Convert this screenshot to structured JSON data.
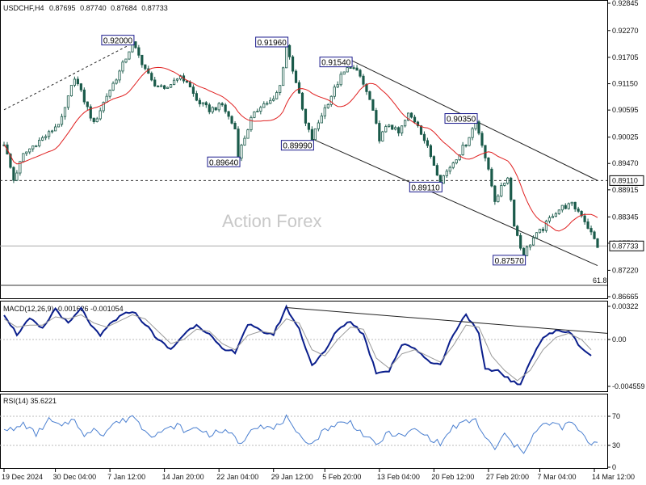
{
  "chart_data": [
    {
      "type": "candlestick",
      "panel": "price",
      "symbol": "USDCHF,H4",
      "ohlc_readout": [
        "0.87695",
        "0.87740",
        "0.87684",
        "0.87733"
      ],
      "yticks": [
        "0.92845",
        "0.92270",
        "0.91705",
        "0.91150",
        "0.90595",
        "0.90025",
        "0.89470",
        "0.88915",
        "0.88345",
        "0.87790",
        "0.87220",
        "0.86665"
      ],
      "ylim": [
        0.86665,
        0.92845
      ],
      "current_price": "0.87733",
      "horizontal_level": "0.89110",
      "fib_label": "61.8",
      "watermark": "Action Forex",
      "moving_average_color": "#e02020",
      "price_color": "#1a5a4a",
      "swing_labels": [
        "0.92000",
        "0.91960",
        "0.91540",
        "0.89640",
        "0.89990",
        "0.90350",
        "0.89110",
        "0.87570"
      ],
      "swings": [
        {
          "label": "0.92000",
          "index": 40,
          "value": 0.92
        },
        {
          "label": "0.91960",
          "index": 88,
          "value": 0.9196
        },
        {
          "label": "0.91540",
          "index": 108,
          "value": 0.9154
        },
        {
          "label": "0.89640",
          "index": 73,
          "value": 0.8964
        },
        {
          "label": "0.89990",
          "index": 96,
          "value": 0.8999
        },
        {
          "label": "0.90350",
          "index": 147,
          "value": 0.9035
        },
        {
          "label": "0.89110",
          "index": 136,
          "value": 0.8911
        },
        {
          "label": "0.87570",
          "index": 162,
          "value": 0.8757
        }
      ],
      "close_path": [
        [
          0,
          0.899
        ],
        [
          3,
          0.8912
        ],
        [
          6,
          0.8965
        ],
        [
          10,
          0.899
        ],
        [
          14,
          0.901
        ],
        [
          18,
          0.904
        ],
        [
          22,
          0.913
        ],
        [
          25,
          0.908
        ],
        [
          28,
          0.903
        ],
        [
          32,
          0.909
        ],
        [
          36,
          0.914
        ],
        [
          40,
          0.92
        ],
        [
          43,
          0.916
        ],
        [
          46,
          0.912
        ],
        [
          50,
          0.91
        ],
        [
          54,
          0.913
        ],
        [
          57,
          0.912
        ],
        [
          60,
          0.908
        ],
        [
          64,
          0.906
        ],
        [
          68,
          0.907
        ],
        [
          72,
          0.902
        ],
        [
          73,
          0.8964
        ],
        [
          77,
          0.904
        ],
        [
          80,
          0.907
        ],
        [
          84,
          0.908
        ],
        [
          86,
          0.911
        ],
        [
          88,
          0.9196
        ],
        [
          91,
          0.912
        ],
        [
          94,
          0.903
        ],
        [
          96,
          0.8999
        ],
        [
          99,
          0.905
        ],
        [
          102,
          0.909
        ],
        [
          105,
          0.913
        ],
        [
          108,
          0.9154
        ],
        [
          111,
          0.913
        ],
        [
          114,
          0.908
        ],
        [
          117,
          0.9
        ],
        [
          120,
          0.903
        ],
        [
          123,
          0.901
        ],
        [
          126,
          0.905
        ],
        [
          129,
          0.903
        ],
        [
          132,
          0.898
        ],
        [
          136,
          0.8911
        ],
        [
          140,
          0.895
        ],
        [
          144,
          0.899
        ],
        [
          147,
          0.9035
        ],
        [
          149,
          0.899
        ],
        [
          151,
          0.893
        ],
        [
          153,
          0.887
        ],
        [
          155,
          0.8895
        ],
        [
          157,
          0.892
        ],
        [
          159,
          0.882
        ],
        [
          161,
          0.877
        ],
        [
          162,
          0.8757
        ],
        [
          165,
          0.879
        ],
        [
          168,
          0.881
        ],
        [
          171,
          0.884
        ],
        [
          174,
          0.8855
        ],
        [
          177,
          0.886
        ],
        [
          180,
          0.884
        ],
        [
          183,
          0.88
        ],
        [
          185,
          0.8773
        ]
      ],
      "trend_lines": [
        {
          "style": "dashed",
          "from": [
            0,
            0.906
          ],
          "to": [
            40,
            0.92
          ]
        },
        {
          "style": "solid",
          "from": [
            96,
            0.8999
          ],
          "to": [
            185,
            0.8732
          ]
        },
        {
          "style": "solid",
          "from": [
            108,
            0.9165
          ],
          "to": [
            185,
            0.8911
          ]
        }
      ],
      "x_tick_labels": [
        "19 Dec 2024",
        "30 Dec 04:00",
        "7 Jan 12:00",
        "14 Jan 20:00",
        "22 Jan 04:00",
        "29 Jan 12:00",
        "5 Feb 20:00",
        "13 Feb 04:00",
        "20 Feb 12:00",
        "27 Feb 20:00",
        "7 Mar 04:00",
        "14 Mar 12:00"
      ],
      "x_tick_index": [
        0,
        16,
        33,
        50,
        67,
        84,
        100,
        117,
        134,
        151,
        167,
        184
      ]
    },
    {
      "type": "line",
      "panel": "macd",
      "title": "MACD(12,26,9) -0.001626 -0.001054",
      "yticks": [
        "0.00322",
        "0.00",
        "-0.004559"
      ],
      "ylim": [
        -0.004559,
        0.00322
      ],
      "series": [
        {
          "name": "MACD",
          "color": "#0a1e8c",
          "points": [
            [
              0,
              0.0025
            ],
            [
              4,
              0.0005
            ],
            [
              8,
              0.002
            ],
            [
              12,
              0.001
            ],
            [
              16,
              0.003
            ],
            [
              20,
              0.0015
            ],
            [
              24,
              0.003
            ],
            [
              28,
              0.001
            ],
            [
              30,
              0.0003
            ],
            [
              33,
              0.0015
            ],
            [
              36,
              0.0022
            ],
            [
              40,
              0.0028
            ],
            [
              44,
              0.0015
            ],
            [
              48,
              0.0
            ],
            [
              52,
              -0.001
            ],
            [
              56,
              0.0005
            ],
            [
              60,
              0.0015
            ],
            [
              64,
              0.0005
            ],
            [
              68,
              -0.001
            ],
            [
              72,
              -0.0012
            ],
            [
              76,
              0.0015
            ],
            [
              80,
              0.0008
            ],
            [
              84,
              0.0005
            ],
            [
              88,
              0.0031
            ],
            [
              92,
              0.001
            ],
            [
              96,
              -0.0025
            ],
            [
              100,
              -0.0012
            ],
            [
              104,
              0.001
            ],
            [
              108,
              0.0018
            ],
            [
              112,
              0.0005
            ],
            [
              116,
              -0.0032
            ],
            [
              120,
              -0.003
            ],
            [
              124,
              -0.0005
            ],
            [
              128,
              -0.0008
            ],
            [
              132,
              -0.002
            ],
            [
              136,
              -0.0025
            ],
            [
              140,
              0.0005
            ],
            [
              144,
              0.0025
            ],
            [
              148,
              0.0005
            ],
            [
              150,
              -0.003
            ],
            [
              154,
              -0.003
            ],
            [
              158,
              -0.004
            ],
            [
              161,
              -0.0045
            ],
            [
              164,
              -0.002
            ],
            [
              168,
              0.0002
            ],
            [
              172,
              0.0008
            ],
            [
              176,
              0.0008
            ],
            [
              180,
              -0.0008
            ],
            [
              183,
              -0.0016
            ]
          ]
        },
        {
          "name": "Signal",
          "color": "#999999",
          "points": [
            [
              0,
              0.002
            ],
            [
              4,
              0.0012
            ],
            [
              8,
              0.0014
            ],
            [
              12,
              0.0014
            ],
            [
              16,
              0.0022
            ],
            [
              20,
              0.002
            ],
            [
              24,
              0.0024
            ],
            [
              28,
              0.0016
            ],
            [
              32,
              0.0012
            ],
            [
              36,
              0.0018
            ],
            [
              40,
              0.0024
            ],
            [
              44,
              0.002
            ],
            [
              48,
              0.0008
            ],
            [
              52,
              -0.0004
            ],
            [
              56,
              0.0
            ],
            [
              60,
              0.001
            ],
            [
              64,
              0.0008
            ],
            [
              68,
              -0.0004
            ],
            [
              72,
              -0.001
            ],
            [
              76,
              0.0004
            ],
            [
              80,
              0.0008
            ],
            [
              84,
              0.0006
            ],
            [
              88,
              0.002
            ],
            [
              92,
              0.0016
            ],
            [
              96,
              -0.001
            ],
            [
              100,
              -0.0016
            ],
            [
              104,
              0.0
            ],
            [
              108,
              0.0012
            ],
            [
              112,
              0.001
            ],
            [
              116,
              -0.0018
            ],
            [
              120,
              -0.0028
            ],
            [
              124,
              -0.0014
            ],
            [
              128,
              -0.001
            ],
            [
              132,
              -0.0016
            ],
            [
              136,
              -0.0022
            ],
            [
              140,
              -0.0006
            ],
            [
              144,
              0.0014
            ],
            [
              148,
              0.0012
            ],
            [
              152,
              -0.0016
            ],
            [
              156,
              -0.003
            ],
            [
              160,
              -0.004
            ],
            [
              164,
              -0.003
            ],
            [
              168,
              -0.001
            ],
            [
              172,
              0.0002
            ],
            [
              176,
              0.0006
            ],
            [
              180,
              0.0
            ],
            [
              183,
              -0.001
            ]
          ]
        }
      ],
      "trend_line": {
        "from": [
          88,
          0.0031
        ],
        "to": [
          185,
          0.0006
        ]
      }
    },
    {
      "type": "line",
      "panel": "rsi",
      "title": "RSI(14) 35.6221",
      "yticks": [
        "70",
        "30",
        "0"
      ],
      "ylim": [
        0,
        100
      ],
      "levels": [
        70,
        30
      ],
      "series": [
        {
          "name": "RSI",
          "color": "#4a7fd0",
          "points": [
            [
              0,
              55
            ],
            [
              3,
              50
            ],
            [
              6,
              60
            ],
            [
              10,
              45
            ],
            [
              14,
              65
            ],
            [
              18,
              55
            ],
            [
              22,
              68
            ],
            [
              25,
              40
            ],
            [
              28,
              55
            ],
            [
              31,
              45
            ],
            [
              34,
              60
            ],
            [
              38,
              65
            ],
            [
              40,
              72
            ],
            [
              43,
              55
            ],
            [
              46,
              45
            ],
            [
              50,
              50
            ],
            [
              54,
              58
            ],
            [
              57,
              48
            ],
            [
              60,
              55
            ],
            [
              64,
              45
            ],
            [
              68,
              50
            ],
            [
              72,
              42
            ],
            [
              74,
              30
            ],
            [
              77,
              55
            ],
            [
              80,
              58
            ],
            [
              84,
              52
            ],
            [
              88,
              68
            ],
            [
              91,
              45
            ],
            [
              94,
              38
            ],
            [
              96,
              32
            ],
            [
              100,
              52
            ],
            [
              104,
              60
            ],
            [
              108,
              62
            ],
            [
              112,
              45
            ],
            [
              116,
              30
            ],
            [
              120,
              48
            ],
            [
              124,
              42
            ],
            [
              128,
              52
            ],
            [
              132,
              42
            ],
            [
              136,
              32
            ],
            [
              140,
              55
            ],
            [
              144,
              62
            ],
            [
              147,
              65
            ],
            [
              150,
              40
            ],
            [
              153,
              25
            ],
            [
              156,
              45
            ],
            [
              159,
              30
            ],
            [
              162,
              22
            ],
            [
              165,
              45
            ],
            [
              168,
              58
            ],
            [
              171,
              60
            ],
            [
              174,
              55
            ],
            [
              177,
              62
            ],
            [
              180,
              45
            ],
            [
              183,
              32
            ],
            [
              185,
              36
            ]
          ]
        }
      ]
    }
  ]
}
